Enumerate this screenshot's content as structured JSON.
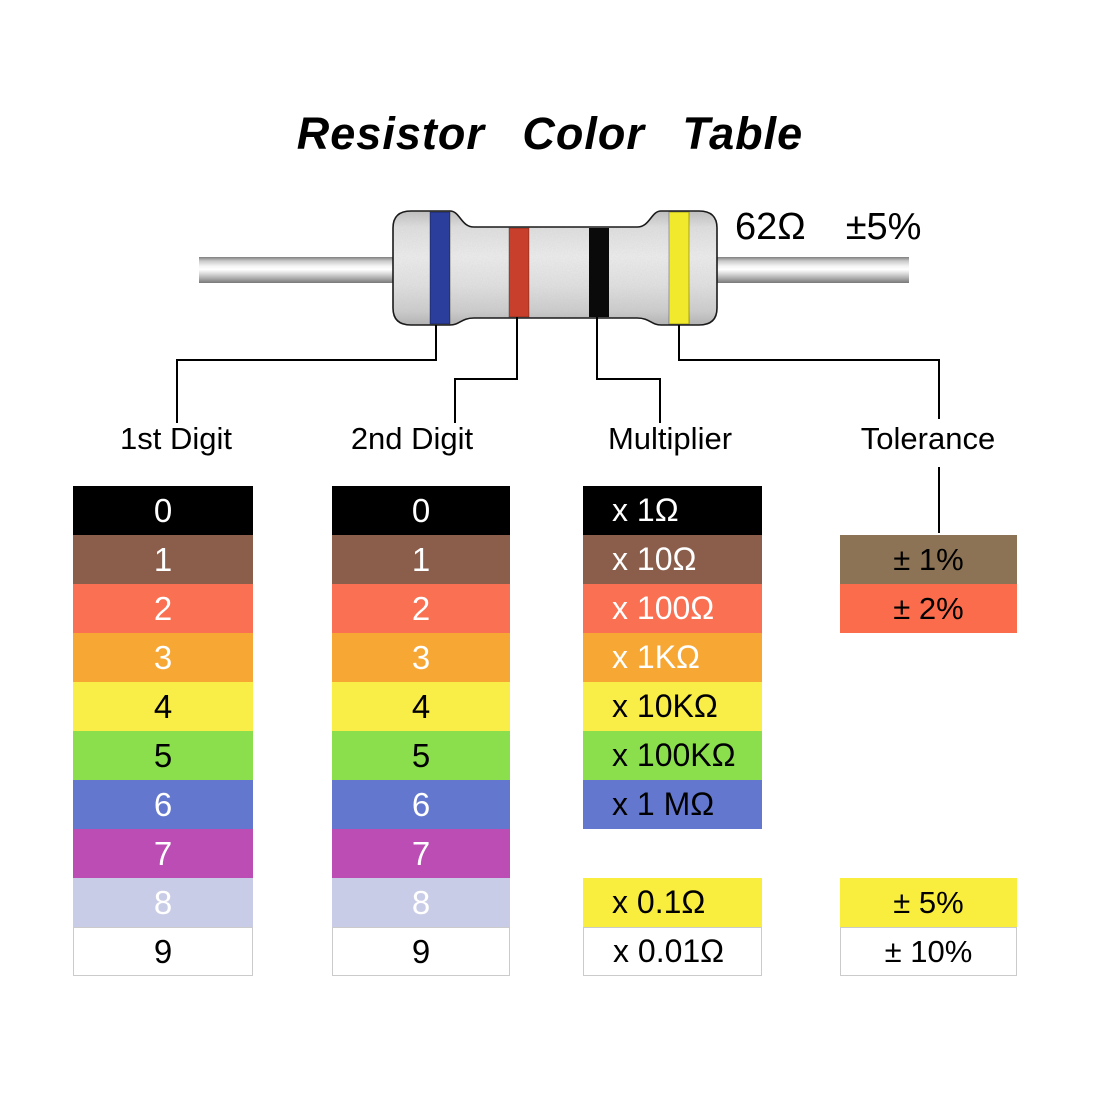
{
  "title": "Resistor Color Table",
  "resistor": {
    "value": "62Ω",
    "tolerance": "±5%",
    "bands": [
      {
        "name": "1st-digit-band",
        "color_name": "blue",
        "color": "#2B3E9C"
      },
      {
        "name": "2nd-digit-band",
        "color_name": "red",
        "color": "#C8402C"
      },
      {
        "name": "multiplier-band",
        "color_name": "black",
        "color": "#0A0A0A"
      },
      {
        "name": "tolerance-band",
        "color_name": "yellow",
        "color": "#F0E92C"
      }
    ]
  },
  "columns": [
    {
      "id": "digit1",
      "header": "1st Digit",
      "align": "center",
      "rows": [
        {
          "slot": 0,
          "label": "0",
          "bg": "#000000",
          "fg": "#FFFFFF"
        },
        {
          "slot": 1,
          "label": "1",
          "bg": "#8B5E4C",
          "fg": "#FFFFFF"
        },
        {
          "slot": 2,
          "label": "2",
          "bg": "#FA7052",
          "fg": "#FFFFFF"
        },
        {
          "slot": 3,
          "label": "3",
          "bg": "#F7A733",
          "fg": "#FFFFFF"
        },
        {
          "slot": 4,
          "label": "4",
          "bg": "#F9ED48",
          "fg": "#000000"
        },
        {
          "slot": 5,
          "label": "5",
          "bg": "#8BDF4C",
          "fg": "#000000"
        },
        {
          "slot": 6,
          "label": "6",
          "bg": "#6377CE",
          "fg": "#FFFFFF"
        },
        {
          "slot": 7,
          "label": "7",
          "bg": "#BB4DB4",
          "fg": "#FFFFFF"
        },
        {
          "slot": 8,
          "label": "8",
          "bg": "#C9CCE6",
          "fg": "#FFFFFF"
        },
        {
          "slot": 9,
          "label": "9",
          "bg": "#FFFFFF",
          "fg": "#000000",
          "bordered": true
        }
      ]
    },
    {
      "id": "digit2",
      "header": "2nd Digit",
      "align": "center",
      "rows": [
        {
          "slot": 0,
          "label": "0",
          "bg": "#000000",
          "fg": "#FFFFFF"
        },
        {
          "slot": 1,
          "label": "1",
          "bg": "#8B5E4C",
          "fg": "#FFFFFF"
        },
        {
          "slot": 2,
          "label": "2",
          "bg": "#FA7052",
          "fg": "#FFFFFF"
        },
        {
          "slot": 3,
          "label": "3",
          "bg": "#F7A733",
          "fg": "#FFFFFF"
        },
        {
          "slot": 4,
          "label": "4",
          "bg": "#F9ED48",
          "fg": "#000000"
        },
        {
          "slot": 5,
          "label": "5",
          "bg": "#8BDF4C",
          "fg": "#000000"
        },
        {
          "slot": 6,
          "label": "6",
          "bg": "#6377CE",
          "fg": "#FFFFFF"
        },
        {
          "slot": 7,
          "label": "7",
          "bg": "#BB4DB4",
          "fg": "#FFFFFF"
        },
        {
          "slot": 8,
          "label": "8",
          "bg": "#C9CCE6",
          "fg": "#FFFFFF"
        },
        {
          "slot": 9,
          "label": "9",
          "bg": "#FFFFFF",
          "fg": "#000000",
          "bordered": true
        }
      ]
    },
    {
      "id": "multiplier",
      "header": "Multiplier",
      "align": "left",
      "rows": [
        {
          "slot": 0,
          "label": "x 1Ω",
          "bg": "#000000",
          "fg": "#FFFFFF"
        },
        {
          "slot": 1,
          "label": "x 10Ω",
          "bg": "#8B5E4C",
          "fg": "#FFFFFF"
        },
        {
          "slot": 2,
          "label": "x 100Ω",
          "bg": "#FA7052",
          "fg": "#FFFFFF"
        },
        {
          "slot": 3,
          "label": "x 1KΩ",
          "bg": "#F7A733",
          "fg": "#FFFFFF"
        },
        {
          "slot": 4,
          "label": "x 10KΩ",
          "bg": "#F9ED48",
          "fg": "#000000"
        },
        {
          "slot": 5,
          "label": "x 100KΩ",
          "bg": "#8BDF4C",
          "fg": "#000000"
        },
        {
          "slot": 6,
          "label": "x 1 MΩ",
          "bg": "#6377CE",
          "fg": "#000000"
        },
        {
          "slot": 8,
          "label": "x 0.1Ω",
          "bg": "#F9ED3E",
          "fg": "#000000"
        },
        {
          "slot": 9,
          "label": "x 0.01Ω",
          "bg": "#FFFFFF",
          "fg": "#000000",
          "bordered": true
        }
      ]
    },
    {
      "id": "tolerance",
      "header": "Tolerance",
      "align": "center",
      "rows": [
        {
          "slot": 1,
          "label": "± 1%",
          "bg": "#8C7355",
          "fg": "#000000"
        },
        {
          "slot": 2,
          "label": "± 2%",
          "bg": "#FA6C4C",
          "fg": "#000000"
        },
        {
          "slot": 8,
          "label": "± 5%",
          "bg": "#F9ED3E",
          "fg": "#000000"
        },
        {
          "slot": 9,
          "label": "± 10%",
          "bg": "#FFFFFF",
          "fg": "#000000",
          "bordered": true
        }
      ]
    }
  ]
}
